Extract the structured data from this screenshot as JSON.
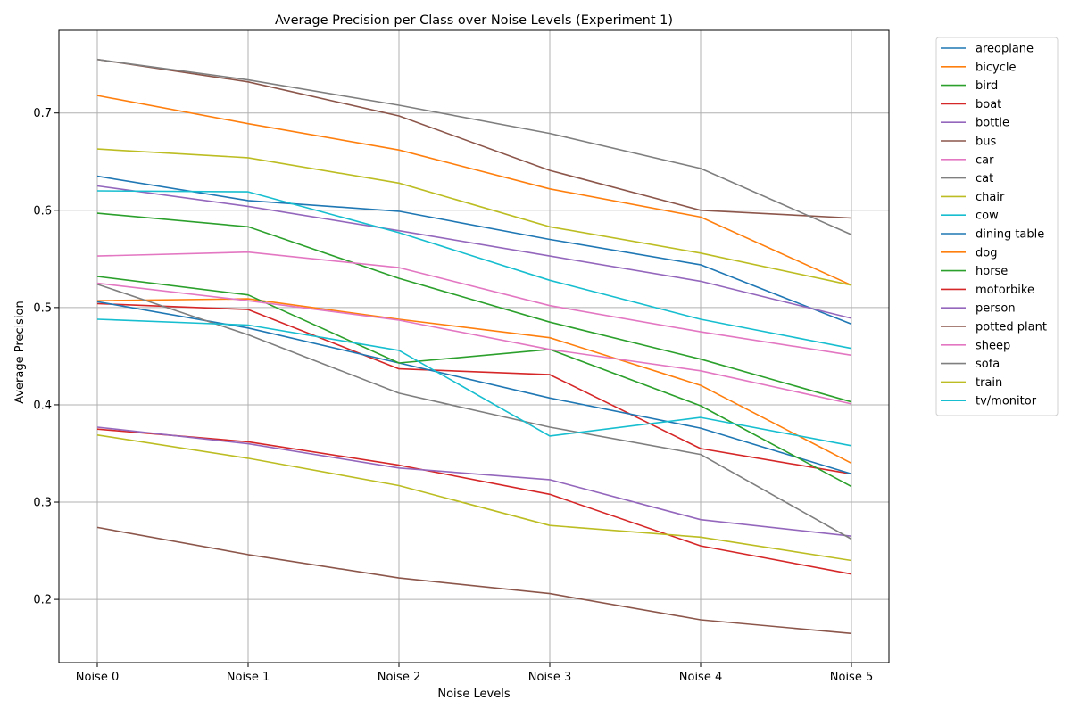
{
  "chart_data": {
    "type": "line",
    "title": "Average Precision per Class over Noise Levels (Experiment 1)",
    "xlabel": "Noise Levels",
    "ylabel": "Average Precision",
    "categories": [
      "Noise 0",
      "Noise 1",
      "Noise 2",
      "Noise 3",
      "Noise 4",
      "Noise 5"
    ],
    "ylim": [
      0.135,
      0.785
    ],
    "yticks": [
      0.2,
      0.3,
      0.4,
      0.5,
      0.6,
      0.7
    ],
    "ytick_labels": [
      "0.2",
      "0.3",
      "0.4",
      "0.5",
      "0.6",
      "0.7"
    ],
    "grid": true,
    "legend_position": "outside-top-right",
    "series": [
      {
        "name": "areoplane",
        "color": "#1f77b4",
        "values": [
          0.635,
          0.61,
          0.599,
          0.57,
          0.544,
          0.483
        ]
      },
      {
        "name": "bicycle",
        "color": "#ff7f0e",
        "values": [
          0.718,
          0.689,
          0.662,
          0.622,
          0.593,
          0.523
        ]
      },
      {
        "name": "bird",
        "color": "#2ca02c",
        "values": [
          0.597,
          0.583,
          0.53,
          0.485,
          0.447,
          0.403
        ]
      },
      {
        "name": "boat",
        "color": "#d62728",
        "values": [
          0.504,
          0.498,
          0.437,
          0.431,
          0.355,
          0.329
        ]
      },
      {
        "name": "bottle",
        "color": "#9467bd",
        "values": [
          0.625,
          0.604,
          0.579,
          0.553,
          0.527,
          0.489
        ]
      },
      {
        "name": "bus",
        "color": "#8c564b",
        "values": [
          0.755,
          0.732,
          0.697,
          0.641,
          0.6,
          0.592
        ]
      },
      {
        "name": "car",
        "color": "#e377c2",
        "values": [
          0.553,
          0.557,
          0.541,
          0.502,
          0.475,
          0.451
        ]
      },
      {
        "name": "cat",
        "color": "#7f7f7f",
        "values": [
          0.755,
          0.734,
          0.708,
          0.679,
          0.643,
          0.575
        ]
      },
      {
        "name": "chair",
        "color": "#bcbd22",
        "values": [
          0.663,
          0.654,
          0.628,
          0.583,
          0.556,
          0.523
        ]
      },
      {
        "name": "cow",
        "color": "#17becf",
        "values": [
          0.62,
          0.619,
          0.577,
          0.528,
          0.488,
          0.458
        ]
      },
      {
        "name": "dining table",
        "color": "#1f77b4",
        "values": [
          0.506,
          0.479,
          0.443,
          0.407,
          0.376,
          0.329
        ]
      },
      {
        "name": "dog",
        "color": "#ff7f0e",
        "values": [
          0.507,
          0.509,
          0.488,
          0.469,
          0.42,
          0.34
        ]
      },
      {
        "name": "horse",
        "color": "#2ca02c",
        "values": [
          0.532,
          0.513,
          0.443,
          0.457,
          0.399,
          0.316
        ]
      },
      {
        "name": "motorbike",
        "color": "#d62728",
        "values": [
          0.375,
          0.362,
          0.338,
          0.308,
          0.255,
          0.226
        ]
      },
      {
        "name": "person",
        "color": "#9467bd",
        "values": [
          0.377,
          0.36,
          0.335,
          0.323,
          0.282,
          0.265
        ]
      },
      {
        "name": "potted plant",
        "color": "#8c564b",
        "values": [
          0.274,
          0.246,
          0.222,
          0.206,
          0.179,
          0.165
        ]
      },
      {
        "name": "sheep",
        "color": "#e377c2",
        "values": [
          0.525,
          0.507,
          0.487,
          0.457,
          0.435,
          0.401
        ]
      },
      {
        "name": "sofa",
        "color": "#7f7f7f",
        "values": [
          0.524,
          0.472,
          0.412,
          0.377,
          0.349,
          0.262
        ]
      },
      {
        "name": "train",
        "color": "#bcbd22",
        "values": [
          0.369,
          0.345,
          0.317,
          0.276,
          0.264,
          0.24
        ]
      },
      {
        "name": "tv/monitor",
        "color": "#17becf",
        "values": [
          0.488,
          0.482,
          0.456,
          0.368,
          0.387,
          0.358
        ]
      }
    ]
  }
}
